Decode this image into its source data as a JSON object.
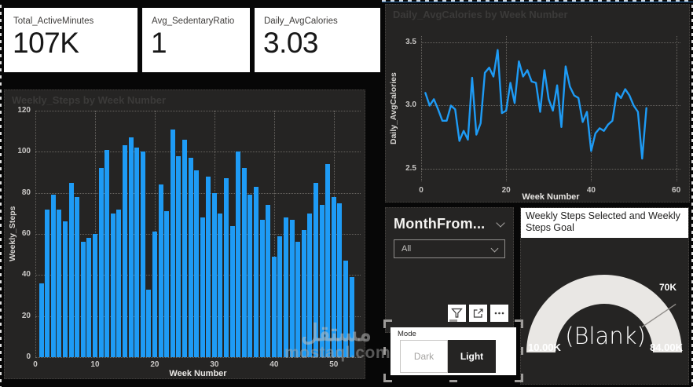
{
  "kpis": [
    {
      "label": "Total_ActiveMinutes",
      "value": "107K"
    },
    {
      "label": "Avg_SedentaryRatio",
      "value": "1"
    },
    {
      "label": "Daily_AvgCalories",
      "value": "3.03"
    }
  ],
  "slicer": {
    "header": "MonthFrom...",
    "value": "All"
  },
  "visual_toolbar": {
    "icons": [
      "filter-icon",
      "focus-mode-icon",
      "more-options-icon"
    ]
  },
  "mode_panel": {
    "label": "Mode",
    "dark_label": "Dark",
    "light_label": "Light"
  },
  "watermark": {
    "logo_text": "مستقل",
    "site_text": "mostaql.com"
  },
  "colors": {
    "accent_blue": "#1E9BF5",
    "panel_bg": "#252423",
    "page_bg": "#070707",
    "card_bg": "#FFFFFF",
    "grid_dot": "#676460",
    "tick_text": "#C8C6C4",
    "gauge_arc": "#E9E7E4",
    "gauge_target_line": "#908D8A",
    "faint_title": "#3B3A39"
  },
  "chart_data": [
    {
      "type": "bar",
      "title": "Weekly_Steps by Week Number",
      "xlabel": "Week Number",
      "ylabel": "Weekly_Steps",
      "x": [
        1,
        2,
        3,
        4,
        5,
        6,
        7,
        8,
        9,
        10,
        11,
        12,
        13,
        14,
        15,
        16,
        17,
        18,
        19,
        20,
        21,
        22,
        23,
        24,
        25,
        26,
        27,
        28,
        29,
        30,
        31,
        32,
        33,
        34,
        35,
        36,
        37,
        38,
        39,
        40,
        41,
        42,
        43,
        44,
        45,
        46,
        47,
        48,
        49,
        50,
        51,
        52,
        53
      ],
      "values": [
        36,
        72,
        79,
        72,
        66,
        85,
        78,
        56,
        58,
        60,
        92,
        101,
        70,
        72,
        103,
        107,
        102,
        100,
        33,
        61,
        84,
        71,
        111,
        98,
        106,
        97,
        91,
        68,
        88,
        80,
        70,
        87,
        64,
        100,
        92,
        79,
        83,
        67,
        74,
        49,
        59,
        68,
        67,
        56,
        62,
        70,
        85,
        74,
        94,
        78,
        75,
        47,
        39
      ],
      "xlim": [
        0,
        54.5
      ],
      "ylim": [
        0,
        120
      ],
      "xticks": [
        0,
        10,
        20,
        30,
        40,
        50
      ],
      "xtick_labels": [
        "0",
        "10",
        "20",
        "30",
        "40",
        "50"
      ],
      "yticks": [
        0,
        20,
        40,
        60,
        80,
        100,
        120
      ],
      "ytick_labels": [
        "0",
        "20",
        "40",
        "60",
        "80",
        "100",
        "120"
      ],
      "grid": true,
      "legend": false
    },
    {
      "type": "line",
      "title": "Daily_AvgCalories by Week Number",
      "xlabel": "Week Number",
      "ylabel": "Daily_AvgCalories",
      "x": [
        1,
        2,
        3,
        4,
        5,
        6,
        7,
        8,
        9,
        10,
        11,
        12,
        13,
        14,
        15,
        16,
        17,
        18,
        19,
        20,
        21,
        22,
        23,
        24,
        25,
        26,
        27,
        28,
        29,
        30,
        31,
        32,
        33,
        34,
        35,
        36,
        37,
        38,
        39,
        40,
        41,
        42,
        43,
        44,
        45,
        46,
        47,
        48,
        49,
        50,
        51,
        52,
        53
      ],
      "values": [
        3.1,
        3.0,
        3.05,
        2.97,
        2.88,
        2.88,
        3.0,
        2.97,
        2.72,
        2.8,
        2.73,
        3.22,
        2.77,
        2.86,
        3.26,
        3.3,
        3.23,
        3.44,
        2.94,
        2.96,
        3.18,
        3.02,
        3.35,
        3.23,
        3.28,
        3.19,
        3.18,
        2.95,
        3.28,
        3.05,
        2.96,
        3.16,
        2.83,
        3.31,
        3.15,
        3.08,
        3.06,
        2.87,
        2.95,
        2.64,
        2.78,
        2.82,
        2.8,
        2.85,
        2.88,
        3.1,
        3.06,
        3.13,
        3.08,
        3.0,
        2.95,
        2.58,
        2.98
      ],
      "xlim": [
        0,
        61
      ],
      "ylim": [
        2.4,
        3.55
      ],
      "xticks": [
        0,
        20,
        40,
        60
      ],
      "xtick_labels": [
        "0",
        "20",
        "40",
        "60"
      ],
      "yticks": [
        2.5,
        3.0,
        3.5
      ],
      "ytick_labels": [
        "2.5",
        "3.0",
        "3.5"
      ],
      "grid": true,
      "legend": false
    },
    {
      "type": "gauge",
      "title": "Weekly Steps Selected and Weekly Steps Goal",
      "min": 10000,
      "max": 84000,
      "target": 70000,
      "min_label": "10.00K",
      "max_label": "84.00K",
      "target_label": "70K",
      "value_label": "(Blank)"
    }
  ]
}
